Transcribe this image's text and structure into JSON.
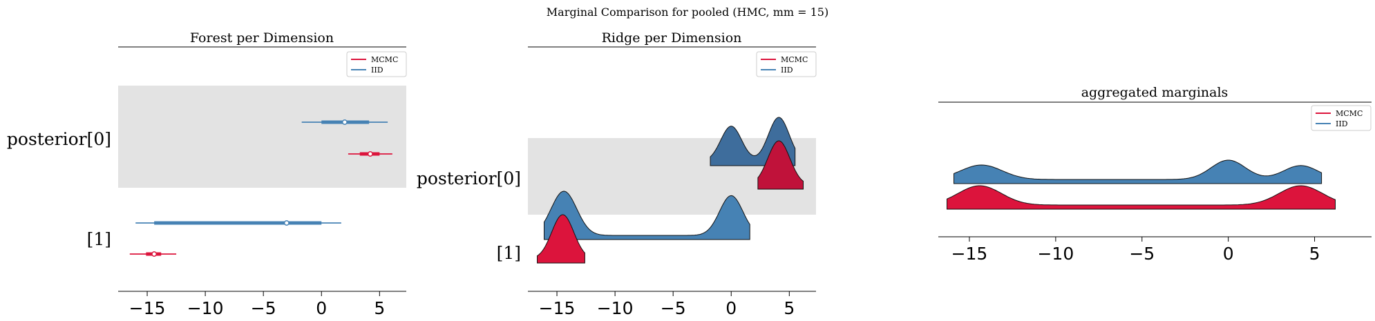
{
  "figure": {
    "suptitle": "Marginal Comparison for pooled (HMC, mm = 15)"
  },
  "colors": {
    "mcmc": "#dc143c",
    "iid": "#4682b4",
    "iid_dark": "#3e6d9c",
    "mcmc_dark": "#c0123a",
    "band": "#e3e3e3"
  },
  "legend": {
    "mcmc": "MCMC",
    "iid": "IID"
  },
  "chart_data": [
    {
      "type": "forest",
      "title": "Forest per Dimension",
      "xlim": [
        -17.5,
        7.3
      ],
      "xticks": [
        -15,
        -10,
        -5,
        0,
        5
      ],
      "xtick_labels": [
        "−15",
        "−10",
        "−5",
        "0",
        "5"
      ],
      "yticks": [
        "posterior[0]",
        "[1]"
      ],
      "legend_position": "upper right",
      "series": [
        {
          "name": "MCMC",
          "color": "#dc143c",
          "rows": [
            {
              "dim": "posterior[0]",
              "hdi94": [
                2.3,
                6.1
              ],
              "hdi50": [
                3.3,
                5.0
              ],
              "median": 4.2
            },
            {
              "dim": "[1]",
              "hdi94": [
                -16.5,
                -12.5
              ],
              "hdi50": [
                -15.1,
                -13.8
              ],
              "median": -14.4
            }
          ]
        },
        {
          "name": "IID",
          "color": "#4682b4",
          "rows": [
            {
              "dim": "posterior[0]",
              "hdi94": [
                -1.7,
                5.7
              ],
              "hdi50": [
                0.0,
                4.1
              ],
              "median": 2.0
            },
            {
              "dim": "[1]",
              "hdi94": [
                -16.0,
                1.7
              ],
              "hdi50": [
                -14.4,
                0.0
              ],
              "median": -3.0
            }
          ]
        }
      ]
    },
    {
      "type": "ridge",
      "title": "Ridge per Dimension",
      "xlim": [
        -17.5,
        7.3
      ],
      "xticks": [
        -15,
        -10,
        -5,
        0,
        5
      ],
      "xtick_labels": [
        "−15",
        "−10",
        "−5",
        "0",
        "5"
      ],
      "yticks": [
        "posterior[0]",
        "[1]"
      ],
      "legend_position": "upper right",
      "series": [
        {
          "name": "MCMC",
          "color": "#dc143c",
          "rows": [
            {
              "dim": "posterior[0]",
              "modes": [
                {
                  "mu": 4.1,
                  "sd": 0.95,
                  "w": 1
                }
              ],
              "range": [
                2.3,
                6.2
              ]
            },
            {
              "dim": "[1]",
              "modes": [
                {
                  "mu": -14.5,
                  "sd": 0.95,
                  "w": 1
                }
              ],
              "range": [
                -16.7,
                -12.6
              ]
            }
          ]
        },
        {
          "name": "IID",
          "color": "#4682b4",
          "rows": [
            {
              "dim": "posterior[0]",
              "modes": [
                {
                  "mu": 0.0,
                  "sd": 0.9,
                  "w": 0.8
                },
                {
                  "mu": 4.1,
                  "sd": 0.9,
                  "w": 1
                }
              ],
              "range": [
                -1.8,
                5.5
              ]
            },
            {
              "dim": "[1]",
              "modes": [
                {
                  "mu": -14.4,
                  "sd": 1.1,
                  "w": 1
                },
                {
                  "mu": 0.0,
                  "sd": 1.0,
                  "w": 0.9
                }
              ],
              "range": [
                -16.1,
                1.6
              ]
            }
          ]
        }
      ]
    },
    {
      "type": "ridge",
      "title": "aggregated marginals",
      "xlim": [
        -16.8,
        8.3
      ],
      "xticks": [
        -15,
        -10,
        -5,
        0,
        5
      ],
      "xtick_labels": [
        "−15",
        "−10",
        "−5",
        "0",
        "5"
      ],
      "legend_position": "upper right",
      "series": [
        {
          "name": "IID",
          "color": "#4682b4",
          "modes": [
            {
              "mu": -14.3,
              "sd": 1.2,
              "w": 0.75
            },
            {
              "mu": 0.0,
              "sd": 1.0,
              "w": 1
            },
            {
              "mu": 4.2,
              "sd": 1.0,
              "w": 0.72
            }
          ],
          "range": [
            -15.9,
            5.4
          ]
        },
        {
          "name": "MCMC",
          "color": "#dc143c",
          "modes": [
            {
              "mu": -14.4,
              "sd": 1.25,
              "w": 1
            },
            {
              "mu": 4.2,
              "sd": 1.25,
              "w": 1
            }
          ],
          "range": [
            -16.3,
            6.2
          ]
        }
      ]
    }
  ]
}
